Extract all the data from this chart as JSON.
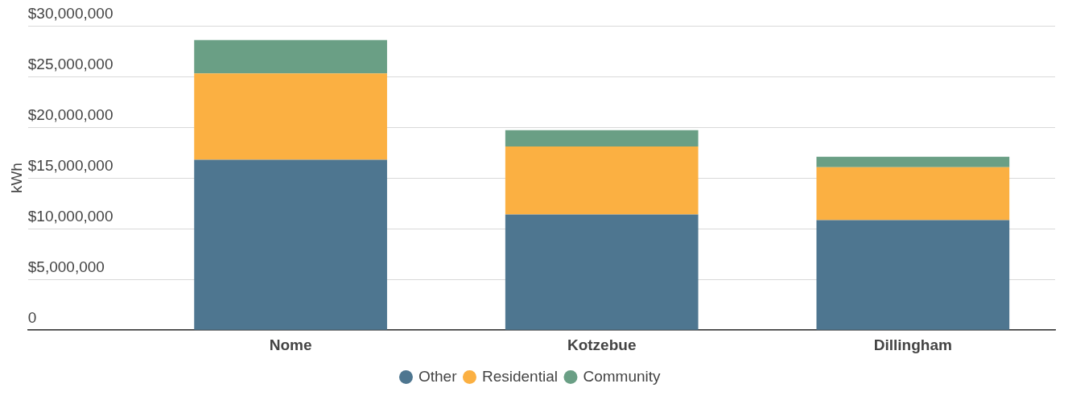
{
  "chart_data": {
    "type": "bar",
    "ylabel": "kWh",
    "categories": [
      "Nome",
      "Kotzebue",
      "Dillingham"
    ],
    "stacked": true,
    "series": [
      {
        "name": "Other",
        "color": "#4e7690",
        "values": [
          16800000,
          11400000,
          10850000
        ]
      },
      {
        "name": "Residential",
        "color": "#fbb042",
        "values": [
          8500000,
          6700000,
          5200000
        ]
      },
      {
        "name": "Community",
        "color": "#6a9f85",
        "values": [
          3300000,
          1600000,
          1050000
        ]
      }
    ],
    "ylim": [
      0,
      30000000
    ],
    "yticks": [
      {
        "value": 0,
        "label": "0"
      },
      {
        "value": 5000000,
        "label": "$5,000,000"
      },
      {
        "value": 10000000,
        "label": "$10,000,000"
      },
      {
        "value": 15000000,
        "label": "$15,000,000"
      },
      {
        "value": 20000000,
        "label": "$20,000,000"
      },
      {
        "value": 25000000,
        "label": "$25,000,000"
      },
      {
        "value": 30000000,
        "label": "$30,000,000"
      }
    ],
    "grid": "y",
    "legend": "bottom"
  }
}
